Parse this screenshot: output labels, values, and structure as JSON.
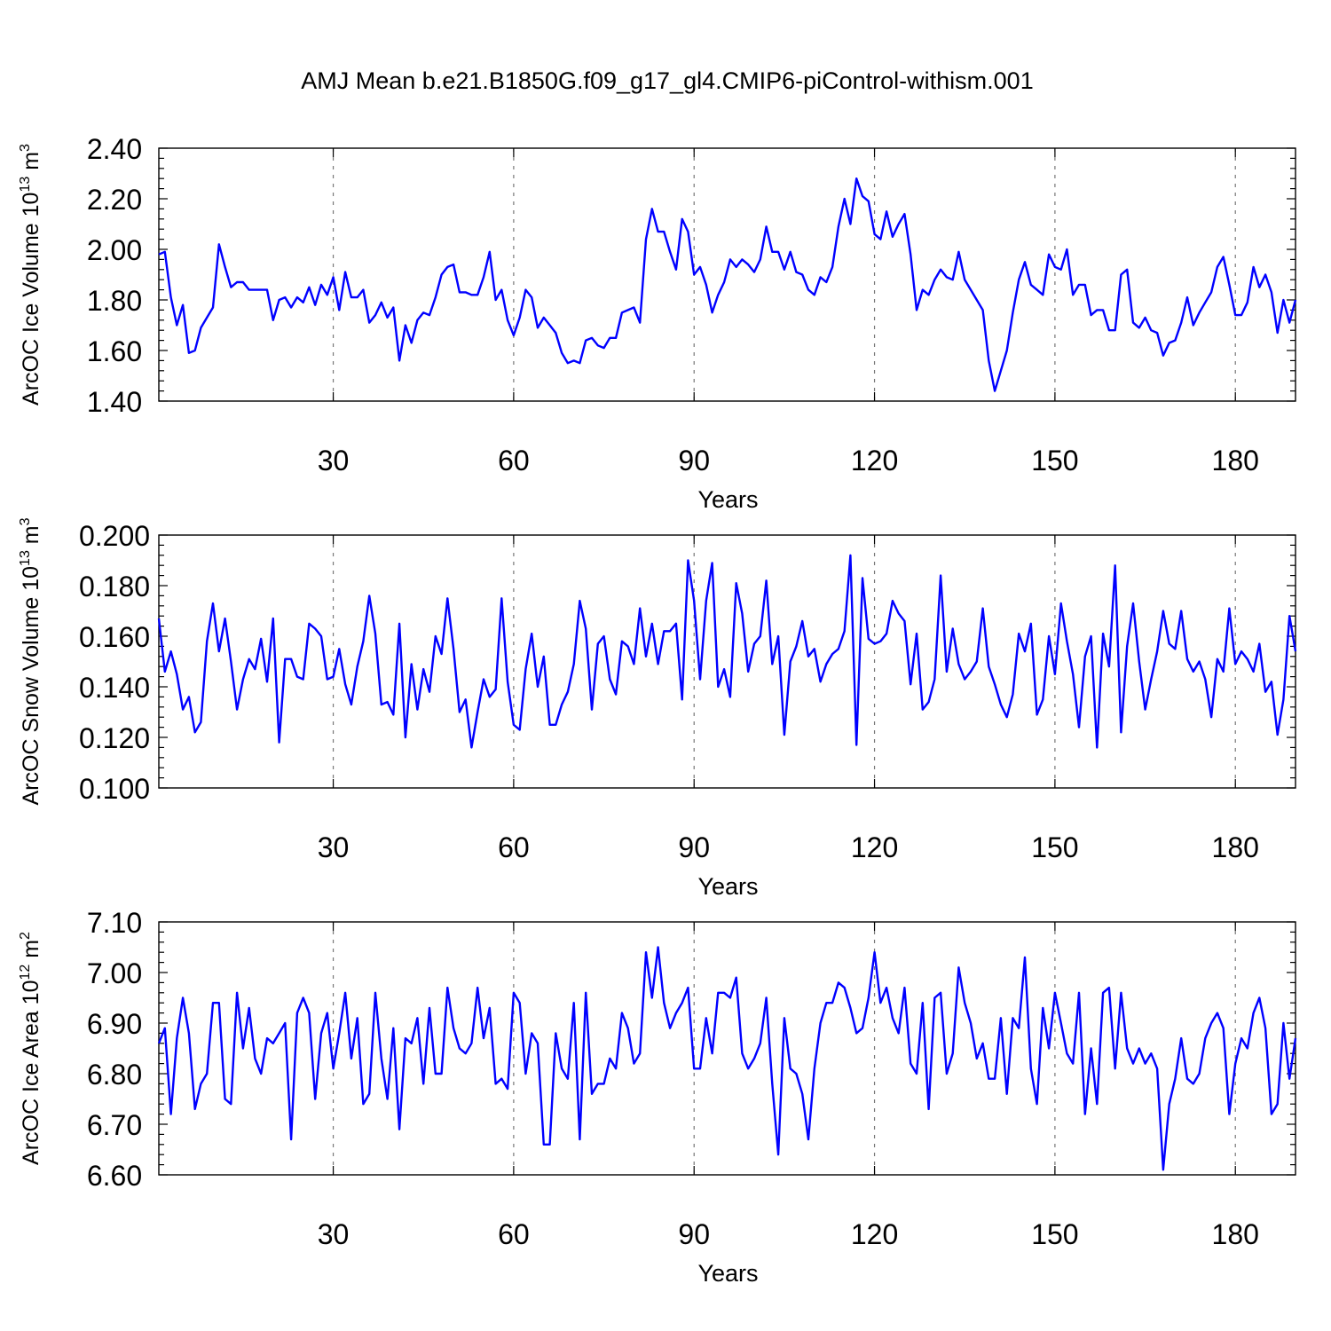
{
  "title": "AMJ Mean b.e21.B1850G.f09_g17_gl4.CMIP6-piControl-withism.001",
  "chart_data": [
    {
      "type": "line",
      "ylabel_main": "ArcOC Ice Volume 10",
      "ylabel_exp": "13",
      "ylabel_unit": " m",
      "ylabel_unit_exp": "3",
      "xlabel": "Years",
      "xlim": [
        1,
        190
      ],
      "ylim": [
        1.4,
        2.4
      ],
      "x_ticks": [
        30,
        60,
        90,
        120,
        150,
        180
      ],
      "y_ticks": [
        "1.40",
        "1.60",
        "1.80",
        "2.00",
        "2.20",
        "2.40"
      ],
      "y_minor_step": 0.04,
      "grid": "x-dashed",
      "x_start": 1,
      "values": [
        1.98,
        1.99,
        1.81,
        1.7,
        1.78,
        1.59,
        1.6,
        1.69,
        1.73,
        1.77,
        2.02,
        1.93,
        1.85,
        1.87,
        1.87,
        1.84,
        1.84,
        1.84,
        1.84,
        1.72,
        1.8,
        1.81,
        1.77,
        1.81,
        1.79,
        1.85,
        1.78,
        1.86,
        1.82,
        1.89,
        1.76,
        1.91,
        1.81,
        1.81,
        1.84,
        1.71,
        1.74,
        1.79,
        1.73,
        1.77,
        1.56,
        1.7,
        1.63,
        1.72,
        1.75,
        1.74,
        1.81,
        1.9,
        1.93,
        1.94,
        1.83,
        1.83,
        1.82,
        1.82,
        1.89,
        1.99,
        1.8,
        1.84,
        1.72,
        1.66,
        1.73,
        1.84,
        1.81,
        1.69,
        1.73,
        1.7,
        1.67,
        1.59,
        1.55,
        1.56,
        1.55,
        1.64,
        1.65,
        1.62,
        1.61,
        1.65,
        1.65,
        1.75,
        1.76,
        1.77,
        1.71,
        2.04,
        2.16,
        2.07,
        2.07,
        1.99,
        1.92,
        2.12,
        2.07,
        1.9,
        1.93,
        1.86,
        1.75,
        1.82,
        1.87,
        1.96,
        1.93,
        1.96,
        1.94,
        1.91,
        1.96,
        2.09,
        1.99,
        1.99,
        1.92,
        1.99,
        1.91,
        1.9,
        1.84,
        1.82,
        1.89,
        1.87,
        1.93,
        2.09,
        2.2,
        2.1,
        2.28,
        2.21,
        2.19,
        2.06,
        2.04,
        2.15,
        2.05,
        2.1,
        2.14,
        1.98,
        1.76,
        1.84,
        1.82,
        1.88,
        1.92,
        1.89,
        1.88,
        1.99,
        1.88,
        1.84,
        1.8,
        1.76,
        1.56,
        1.44,
        1.52,
        1.6,
        1.75,
        1.88,
        1.95,
        1.86,
        1.84,
        1.82,
        1.98,
        1.93,
        1.92,
        2.0,
        1.82,
        1.86,
        1.86,
        1.74,
        1.76,
        1.76,
        1.68,
        1.68,
        1.9,
        1.92,
        1.71,
        1.69,
        1.73,
        1.68,
        1.67,
        1.58,
        1.63,
        1.64,
        1.71,
        1.81,
        1.7,
        1.75,
        1.79,
        1.83,
        1.93,
        1.97,
        1.86,
        1.74,
        1.74,
        1.79,
        1.93,
        1.85,
        1.9,
        1.83,
        1.67,
        1.8,
        1.71,
        1.8
      ]
    },
    {
      "type": "line",
      "ylabel_main": "ArcOC Snow Volume 10",
      "ylabel_exp": "13",
      "ylabel_unit": " m",
      "ylabel_unit_exp": "3",
      "xlabel": "Years",
      "xlim": [
        1,
        190
      ],
      "ylim": [
        0.1,
        0.2
      ],
      "x_ticks": [
        30,
        60,
        90,
        120,
        150,
        180
      ],
      "y_ticks": [
        "0.100",
        "0.120",
        "0.140",
        "0.160",
        "0.180",
        "0.200"
      ],
      "y_minor_step": 0.004,
      "grid": "x-dashed",
      "x_start": 1,
      "values": [
        0.167,
        0.146,
        0.154,
        0.145,
        0.131,
        0.136,
        0.122,
        0.126,
        0.158,
        0.173,
        0.154,
        0.167,
        0.15,
        0.131,
        0.143,
        0.151,
        0.147,
        0.159,
        0.142,
        0.167,
        0.118,
        0.151,
        0.151,
        0.144,
        0.143,
        0.165,
        0.163,
        0.16,
        0.143,
        0.144,
        0.155,
        0.141,
        0.133,
        0.148,
        0.158,
        0.176,
        0.161,
        0.133,
        0.134,
        0.129,
        0.165,
        0.12,
        0.149,
        0.131,
        0.147,
        0.138,
        0.16,
        0.153,
        0.175,
        0.155,
        0.13,
        0.135,
        0.116,
        0.13,
        0.143,
        0.136,
        0.139,
        0.175,
        0.142,
        0.125,
        0.123,
        0.147,
        0.161,
        0.14,
        0.152,
        0.125,
        0.125,
        0.133,
        0.138,
        0.149,
        0.174,
        0.163,
        0.131,
        0.157,
        0.16,
        0.143,
        0.137,
        0.158,
        0.156,
        0.149,
        0.171,
        0.152,
        0.165,
        0.149,
        0.162,
        0.162,
        0.165,
        0.135,
        0.19,
        0.174,
        0.143,
        0.174,
        0.189,
        0.14,
        0.147,
        0.136,
        0.181,
        0.169,
        0.146,
        0.157,
        0.16,
        0.182,
        0.149,
        0.16,
        0.121,
        0.15,
        0.156,
        0.166,
        0.152,
        0.155,
        0.142,
        0.149,
        0.153,
        0.155,
        0.162,
        0.192,
        0.117,
        0.183,
        0.159,
        0.157,
        0.158,
        0.161,
        0.174,
        0.169,
        0.166,
        0.141,
        0.161,
        0.131,
        0.134,
        0.143,
        0.184,
        0.146,
        0.163,
        0.149,
        0.143,
        0.146,
        0.15,
        0.171,
        0.148,
        0.141,
        0.133,
        0.128,
        0.137,
        0.161,
        0.154,
        0.165,
        0.129,
        0.135,
        0.16,
        0.145,
        0.173,
        0.158,
        0.145,
        0.124,
        0.152,
        0.16,
        0.116,
        0.161,
        0.148,
        0.188,
        0.122,
        0.156,
        0.173,
        0.15,
        0.131,
        0.143,
        0.154,
        0.17,
        0.157,
        0.155,
        0.17,
        0.151,
        0.146,
        0.15,
        0.143,
        0.128,
        0.151,
        0.146,
        0.171,
        0.149,
        0.154,
        0.151,
        0.146,
        0.157,
        0.138,
        0.142,
        0.121,
        0.135,
        0.168,
        0.154
      ]
    },
    {
      "type": "line",
      "ylabel_main": "ArcOC Ice Area 10",
      "ylabel_exp": "12",
      "ylabel_unit": " m",
      "ylabel_unit_exp": "2",
      "xlabel": "Years",
      "xlim": [
        1,
        190
      ],
      "ylim": [
        6.6,
        7.1
      ],
      "x_ticks": [
        30,
        60,
        90,
        120,
        150,
        180
      ],
      "y_ticks": [
        "6.60",
        "6.70",
        "6.80",
        "6.90",
        "7.00",
        "7.10"
      ],
      "y_minor_step": 0.02,
      "grid": "x-dashed",
      "x_start": 1,
      "values": [
        6.86,
        6.89,
        6.72,
        6.87,
        6.95,
        6.88,
        6.73,
        6.78,
        6.8,
        6.94,
        6.94,
        6.75,
        6.74,
        6.96,
        6.85,
        6.93,
        6.83,
        6.8,
        6.87,
        6.86,
        6.88,
        6.9,
        6.67,
        6.92,
        6.95,
        6.92,
        6.75,
        6.88,
        6.92,
        6.81,
        6.88,
        6.96,
        6.83,
        6.91,
        6.74,
        6.76,
        6.96,
        6.83,
        6.75,
        6.89,
        6.69,
        6.87,
        6.86,
        6.91,
        6.78,
        6.93,
        6.8,
        6.8,
        6.97,
        6.89,
        6.85,
        6.84,
        6.86,
        6.97,
        6.87,
        6.93,
        6.78,
        6.79,
        6.77,
        6.96,
        6.94,
        6.8,
        6.88,
        6.86,
        6.66,
        6.66,
        6.88,
        6.81,
        6.79,
        6.94,
        6.67,
        6.96,
        6.76,
        6.78,
        6.78,
        6.83,
        6.81,
        6.92,
        6.89,
        6.82,
        6.84,
        7.04,
        6.95,
        7.05,
        6.94,
        6.89,
        6.92,
        6.94,
        6.97,
        6.81,
        6.81,
        6.91,
        6.84,
        6.96,
        6.96,
        6.95,
        6.99,
        6.84,
        6.81,
        6.83,
        6.86,
        6.95,
        6.78,
        6.64,
        6.91,
        6.81,
        6.8,
        6.76,
        6.67,
        6.81,
        6.9,
        6.94,
        6.94,
        6.98,
        6.97,
        6.93,
        6.88,
        6.89,
        6.95,
        7.04,
        6.94,
        6.97,
        6.91,
        6.88,
        6.97,
        6.82,
        6.8,
        6.94,
        6.73,
        6.95,
        6.96,
        6.8,
        6.84,
        7.01,
        6.94,
        6.9,
        6.83,
        6.86,
        6.79,
        6.79,
        6.91,
        6.76,
        6.91,
        6.89,
        7.03,
        6.81,
        6.74,
        6.93,
        6.85,
        6.96,
        6.9,
        6.84,
        6.82,
        6.96,
        6.72,
        6.85,
        6.74,
        6.96,
        6.97,
        6.81,
        6.96,
        6.85,
        6.82,
        6.85,
        6.82,
        6.84,
        6.81,
        6.61,
        6.74,
        6.79,
        6.87,
        6.79,
        6.78,
        6.8,
        6.87,
        6.9,
        6.92,
        6.89,
        6.72,
        6.82,
        6.87,
        6.85,
        6.92,
        6.95,
        6.89,
        6.72,
        6.74,
        6.9,
        6.79,
        6.87
      ]
    }
  ]
}
